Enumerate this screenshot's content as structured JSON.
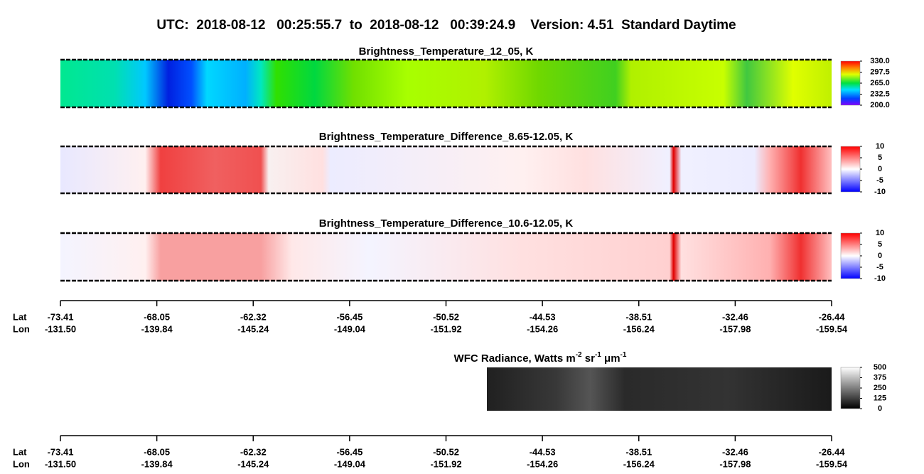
{
  "title": "UTC:  2018-08-12   00:25:55.7  to  2018-08-12   00:39:24.9    Version: 4.51  Standard Daytime",
  "panels": [
    {
      "title": "Brightness_Temperature_12_05, K",
      "colormap": "rainbow",
      "colorbar": {
        "lim": [
          200,
          330
        ],
        "ticks": [
          {
            "value": 200,
            "label": "200.0"
          },
          {
            "value": 232.5,
            "label": "232.5"
          },
          {
            "value": 265,
            "label": "265.0"
          },
          {
            "value": 297.5,
            "label": "297.5"
          },
          {
            "value": 330,
            "label": "330.0"
          }
        ]
      }
    },
    {
      "title": "Brightness_Temperature_Difference_8.65-12.05, K",
      "colormap": "bwr",
      "colorbar": {
        "lim": [
          -10,
          10
        ],
        "ticks": [
          -10,
          -5,
          0,
          5,
          10
        ]
      }
    },
    {
      "title": "Brightness_Temperature_Difference_10.6-12.05, K",
      "colormap": "bwr2",
      "colorbar": {
        "lim": [
          -10,
          10
        ],
        "ticks": [
          -10,
          -5,
          0,
          5,
          10
        ]
      }
    },
    {
      "title_segments": [
        {
          "text": "WFC Radiance, Watts m"
        },
        {
          "text": "-2",
          "sup": true
        },
        {
          "text": " sr"
        },
        {
          "text": "-1",
          "sup": true
        },
        {
          "text": " μm"
        },
        {
          "text": "-1",
          "sup": true
        }
      ],
      "colormap": "gray",
      "colorbar": {
        "lim": [
          0,
          500
        ],
        "ticks": [
          0,
          125,
          250,
          375,
          500
        ]
      }
    }
  ],
  "axes": [
    {
      "lat_label": "Lat",
      "lon_label": "Lon",
      "lat": [
        "-73.41",
        "-68.05",
        "-62.32",
        "-56.45",
        "-50.52",
        "-44.53",
        "-38.51",
        "-32.46",
        "-26.44"
      ],
      "lon": [
        "-131.50",
        "-139.84",
        "-145.24",
        "-149.04",
        "-151.92",
        "-154.26",
        "-156.24",
        "-157.98",
        "-159.54"
      ]
    },
    {
      "lat_label": "Lat",
      "lon_label": "Lon",
      "lat": [
        "-73.41",
        "-68.05",
        "-62.32",
        "-56.45",
        "-50.52",
        "-44.53",
        "-38.51",
        "-32.46",
        "-26.44"
      ],
      "lon": [
        "-131.50",
        "-139.84",
        "-145.24",
        "-149.04",
        "-151.92",
        "-154.26",
        "-156.24",
        "-157.98",
        "-159.54"
      ]
    }
  ]
}
